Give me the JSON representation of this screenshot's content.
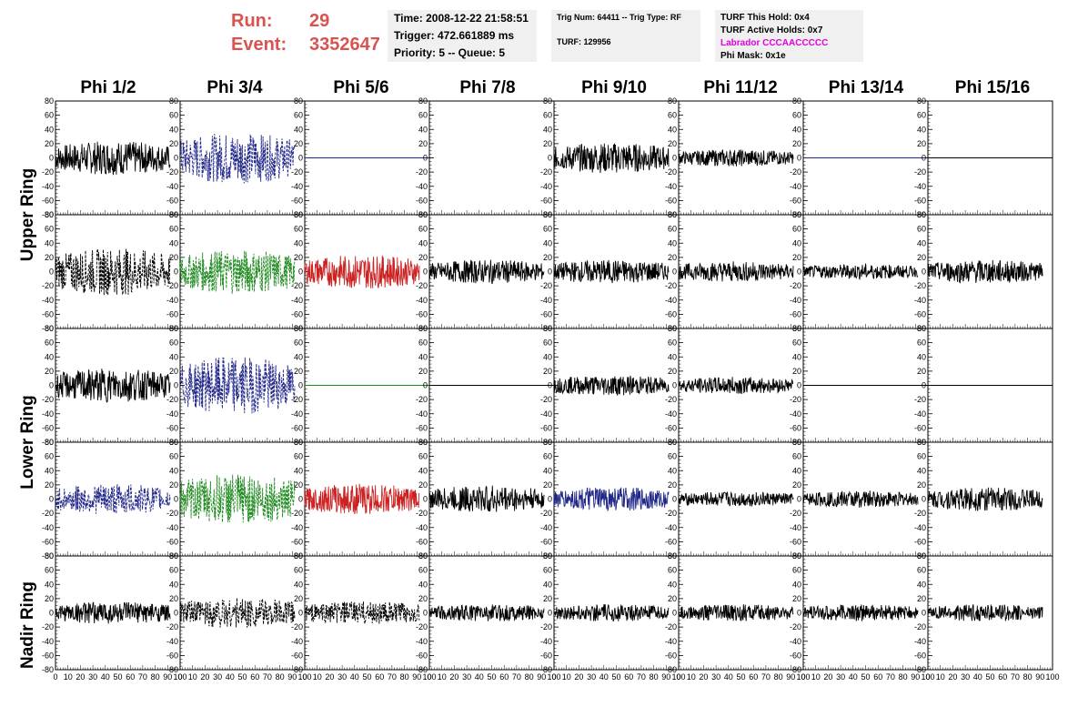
{
  "header": {
    "run_label": "Run:",
    "run_value": "29",
    "event_label": "Event:",
    "event_value": "3352647"
  },
  "time_box": {
    "time": "Time: 2008-12-22 21:58:51",
    "trigger": "Trigger: 472.661889 ms",
    "priority": "Priority: 5 -- Queue: 5"
  },
  "trig_box": {
    "trig": "Trig Num: 64411 -- Trig Type: RF",
    "turf": "TURF: 129956"
  },
  "turf_box": {
    "this_hold": "TURF This Hold: 0x4",
    "active_holds": "TURF Active Holds: 0x7",
    "labrador": "Labrador CCCAACCCCC",
    "phi_mask": "Phi Mask: 0x1e"
  },
  "columns": [
    "Phi 1/2",
    "Phi 3/4",
    "Phi 5/6",
    "Phi 7/8",
    "Phi 9/10",
    "Phi 11/12",
    "Phi 13/14",
    "Phi 15/16"
  ],
  "rows": [
    "Upper Ring",
    "Lower Ring",
    "Nadir Ring"
  ],
  "colors": {
    "accent_red": "#d9534f",
    "magenta": "#e000e0",
    "black": "#000000",
    "blue": "#22288a",
    "green": "#1f8a1f",
    "red": "#cc2222"
  },
  "chart_data": {
    "type": "line",
    "xlim": [
      0,
      100
    ],
    "ylim": [
      -80,
      80
    ],
    "y_ticks": [
      80,
      60,
      40,
      20,
      0,
      -20,
      -40,
      -60,
      -80
    ],
    "y_tick_labels": [
      "80",
      "60",
      "40",
      "20",
      "0",
      "-20",
      "-40",
      "-60",
      "-80"
    ],
    "x_ticks": [
      0,
      10,
      20,
      30,
      40,
      50,
      60,
      70,
      80,
      90,
      100
    ],
    "x_tick_labels": [
      "0",
      "10",
      "20",
      "30",
      "40",
      "50",
      "60",
      "70",
      "80",
      "90",
      "100"
    ],
    "panels_note": "5 rows x 8 columns of waveform panels",
    "panel_series": [
      [
        {
          "color": "black",
          "amp": 20,
          "style": "solid"
        },
        {
          "color": "blue",
          "amp": 30,
          "style": "dashed"
        },
        {
          "color": "blue",
          "amp": 0,
          "style": "flat"
        },
        {
          "color": "none",
          "amp": 0,
          "style": "none"
        },
        {
          "color": "black",
          "amp": 18,
          "style": "solid"
        },
        {
          "color": "black",
          "amp": 10,
          "style": "solid"
        },
        {
          "color": "blue",
          "amp": 0,
          "style": "flat"
        },
        {
          "color": "black",
          "amp": 0,
          "style": "flat"
        }
      ],
      [
        {
          "color": "black",
          "amp": 28,
          "style": "dashed"
        },
        {
          "color": "green",
          "amp": 26,
          "style": "dashed"
        },
        {
          "color": "red",
          "amp": 20,
          "style": "solid"
        },
        {
          "color": "black",
          "amp": 14,
          "style": "solid"
        },
        {
          "color": "black",
          "amp": 14,
          "style": "solid"
        },
        {
          "color": "black",
          "amp": 12,
          "style": "solid"
        },
        {
          "color": "black",
          "amp": 9,
          "style": "solid"
        },
        {
          "color": "black",
          "amp": 14,
          "style": "solid"
        }
      ],
      [
        {
          "color": "black",
          "amp": 20,
          "style": "solid"
        },
        {
          "color": "blue",
          "amp": 34,
          "style": "dashed"
        },
        {
          "color": "green",
          "amp": 0,
          "style": "flat"
        },
        {
          "color": "black",
          "amp": 0,
          "style": "flat"
        },
        {
          "color": "black",
          "amp": 12,
          "style": "solid"
        },
        {
          "color": "black",
          "amp": 10,
          "style": "solid"
        },
        {
          "color": "black",
          "amp": 0,
          "style": "flat"
        },
        {
          "color": "black",
          "amp": 0,
          "style": "flat"
        }
      ],
      [
        {
          "color": "blue",
          "amp": 18,
          "style": "dashed"
        },
        {
          "color": "green",
          "amp": 30,
          "style": "dashed"
        },
        {
          "color": "red",
          "amp": 18,
          "style": "solid"
        },
        {
          "color": "black",
          "amp": 16,
          "style": "solid"
        },
        {
          "color": "blue",
          "amp": 14,
          "style": "solid"
        },
        {
          "color": "black",
          "amp": 9,
          "style": "solid"
        },
        {
          "color": "black",
          "amp": 10,
          "style": "solid"
        },
        {
          "color": "black",
          "amp": 14,
          "style": "solid"
        }
      ],
      [
        {
          "color": "black",
          "amp": 13,
          "style": "solid"
        },
        {
          "color": "black",
          "amp": 18,
          "style": "dashed"
        },
        {
          "color": "black",
          "amp": 14,
          "style": "dashed"
        },
        {
          "color": "black",
          "amp": 10,
          "style": "solid"
        },
        {
          "color": "black",
          "amp": 10,
          "style": "solid"
        },
        {
          "color": "black",
          "amp": 10,
          "style": "solid"
        },
        {
          "color": "black",
          "amp": 10,
          "style": "solid"
        },
        {
          "color": "black",
          "amp": 10,
          "style": "solid"
        }
      ]
    ]
  }
}
